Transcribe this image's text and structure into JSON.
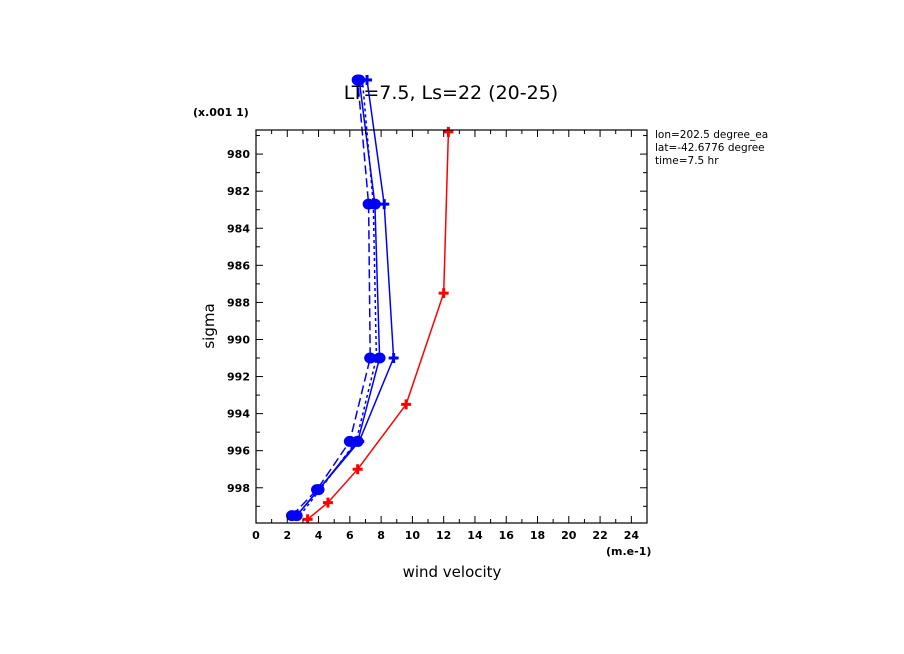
{
  "chart_data": {
    "type": "line",
    "title": "LT=7.5, Ls=22 (20-25)",
    "xlabel": "wind velocity",
    "ylabel": "sigma",
    "x_units": "(m.e-1)",
    "y_scale_note": "(x.001 1)",
    "xlim": [
      0,
      25
    ],
    "ylim": [
      999.9,
      978.7
    ],
    "x_ticks": [
      "0",
      "2",
      "4",
      "6",
      "8",
      "10",
      "12",
      "14",
      "16",
      "18",
      "20",
      "22",
      "24"
    ],
    "y_ticks": [
      "980",
      "982",
      "984",
      "986",
      "988",
      "990",
      "992",
      "994",
      "996",
      "998"
    ],
    "info_lines": [
      "lon=202.5 degree_ea",
      "lat=-42.6776 degree",
      "time=7.5 hr"
    ],
    "grid": false,
    "series": [
      {
        "color": "#ff0000",
        "style": "solid",
        "marker": "cross",
        "x": [
          3.3,
          4.6,
          6.5,
          9.6,
          12.0,
          12.3
        ],
        "y": [
          999.7,
          998.8,
          997.0,
          993.5,
          987.5,
          978.8
        ]
      },
      {
        "color": "#0000ff",
        "style": "solid",
        "marker": "cross",
        "x": [
          2.6,
          4.0,
          6.6,
          8.8,
          8.2,
          7.1
        ],
        "y": [
          999.5,
          998.1,
          995.5,
          991.0,
          982.7,
          976.0
        ]
      },
      {
        "color": "#0000ff",
        "style": "solid",
        "marker": "dot",
        "x": [
          2.6,
          4.0,
          6.5,
          7.9,
          7.6,
          6.6
        ],
        "y": [
          999.5,
          998.1,
          995.5,
          991.0,
          982.7,
          976.0
        ]
      },
      {
        "color": "#0000ff",
        "style": "dashed",
        "marker": "dot",
        "x": [
          2.3,
          3.9,
          6.0,
          7.3,
          7.2,
          6.5
        ],
        "y": [
          999.5,
          998.1,
          995.5,
          991.0,
          982.7,
          976.0
        ]
      },
      {
        "color": "#0000ff",
        "style": "dotted",
        "marker": "none",
        "x": [
          2.8,
          4.1,
          6.4,
          7.7,
          7.5,
          6.8
        ],
        "y": [
          999.5,
          998.1,
          995.5,
          991.0,
          982.7,
          976.0
        ]
      }
    ]
  }
}
